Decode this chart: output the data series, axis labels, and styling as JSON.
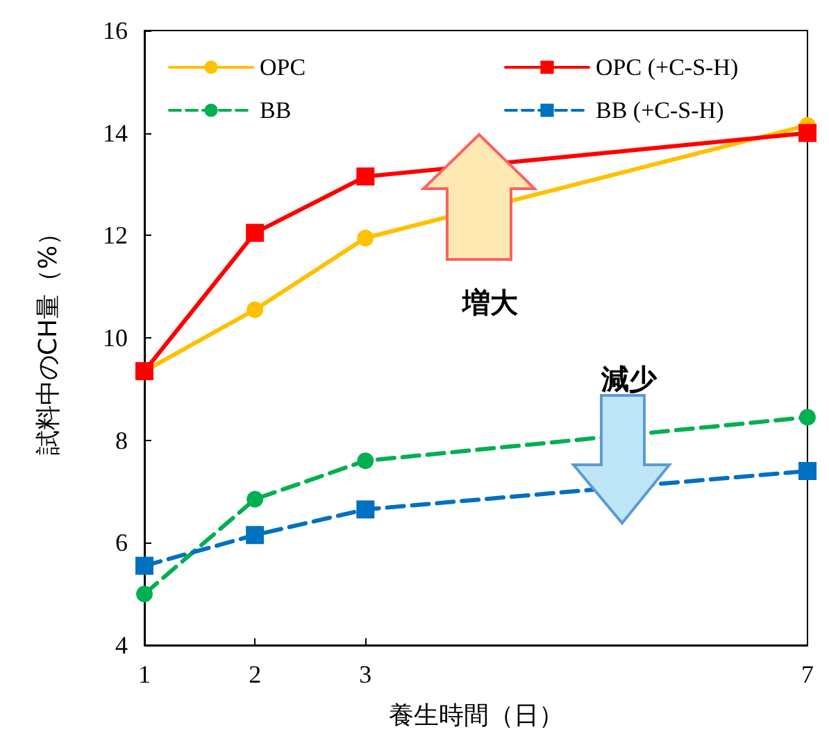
{
  "chart_data": {
    "type": "line",
    "xlabel": "養生時間（日）",
    "ylabel": "試料中のCH量（%）",
    "x": [
      1,
      2,
      3,
      7
    ],
    "xlim": [
      1,
      7
    ],
    "xticks": [
      1,
      2,
      3,
      7
    ],
    "ylim": [
      4,
      16
    ],
    "yticks": [
      4,
      6,
      8,
      10,
      12,
      14,
      16
    ],
    "grid": false,
    "legend": "top",
    "annotations": [
      "増大",
      "減少"
    ],
    "series": [
      {
        "name": "OPC",
        "color": "#ffc000",
        "marker": "circle",
        "line_style": "solid",
        "values": [
          9.35,
          10.55,
          11.95,
          14.15
        ]
      },
      {
        "name": "OPC (+C-S-H)",
        "color": "#ff0000",
        "marker": "square",
        "line_style": "solid",
        "values": [
          9.35,
          12.05,
          13.15,
          14.0
        ]
      },
      {
        "name": "BB",
        "color": "#00b050",
        "marker": "circle",
        "line_style": "dashed",
        "values": [
          5.0,
          6.85,
          7.6,
          8.45
        ]
      },
      {
        "name": "BB (+C-S-H)",
        "color": "#0070c0",
        "marker": "square",
        "line_style": "dashed",
        "values": [
          5.55,
          6.15,
          6.65,
          7.4
        ]
      }
    ]
  }
}
